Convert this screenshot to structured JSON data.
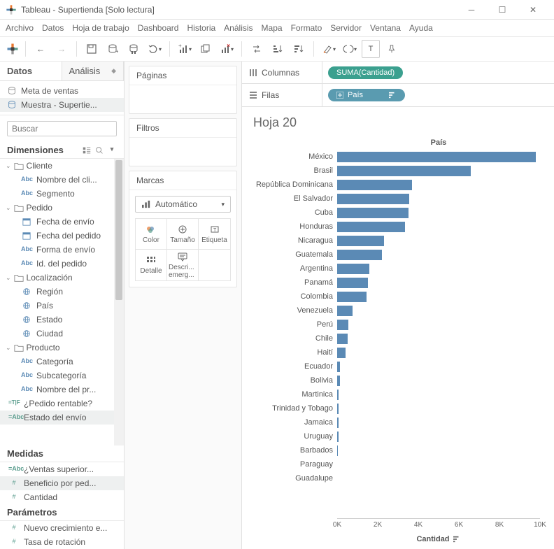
{
  "app_title": "Tableau - Supertienda [Solo lectura]",
  "menu": [
    "Archivo",
    "Datos",
    "Hoja de trabajo",
    "Dashboard",
    "Historia",
    "Análisis",
    "Mapa",
    "Formato",
    "Servidor",
    "Ventana",
    "Ayuda"
  ],
  "datapane": {
    "tab_active": "Datos",
    "tab_inactive": "Análisis",
    "sources": [
      {
        "label": "Meta de ventas",
        "sel": false
      },
      {
        "label": "Muestra - Supertie...",
        "sel": true
      }
    ],
    "search_placeholder": "Buscar",
    "dimensions_label": "Dimensiones",
    "measures_label": "Medidas",
    "parameters_label": "Parámetros",
    "folders": [
      {
        "name": "Cliente",
        "fields": [
          {
            "t": "abc",
            "n": "Nombre del cli..."
          },
          {
            "t": "abc",
            "n": "Segmento"
          }
        ]
      },
      {
        "name": "Pedido",
        "fields": [
          {
            "t": "date",
            "n": "Fecha de envío"
          },
          {
            "t": "date",
            "n": "Fecha del pedido"
          },
          {
            "t": "abc",
            "n": "Forma de envío"
          },
          {
            "t": "abc",
            "n": "Id. del pedido"
          }
        ]
      },
      {
        "name": "Localización",
        "fields": [
          {
            "t": "geo",
            "n": "Región"
          },
          {
            "t": "geo",
            "n": "País"
          },
          {
            "t": "geo",
            "n": "Estado"
          },
          {
            "t": "geo",
            "n": "Ciudad"
          }
        ]
      },
      {
        "name": "Producto",
        "fields": [
          {
            "t": "abc",
            "n": "Categoría"
          },
          {
            "t": "abc",
            "n": "Subcategoría"
          },
          {
            "t": "abc",
            "n": "Nombre del pr..."
          }
        ]
      }
    ],
    "loose_dim": [
      {
        "t": "tf",
        "n": "¿Pedido rentable?"
      },
      {
        "t": "calc",
        "n": "Estado del envío",
        "sel": true
      }
    ],
    "measures": [
      {
        "t": "calc",
        "n": "¿Ventas superior..."
      },
      {
        "t": "num",
        "n": "Beneficio por ped...",
        "sel": true
      },
      {
        "t": "num",
        "n": "Cantidad"
      }
    ],
    "parameters": [
      {
        "t": "num",
        "n": "Nuevo crecimiento e..."
      },
      {
        "t": "num",
        "n": "Tasa de rotación"
      }
    ]
  },
  "cards": {
    "pages": "Páginas",
    "filters": "Filtros",
    "marks": "Marcas",
    "mark_type": "Automático",
    "cells": [
      {
        "l": "Color",
        "i": "color"
      },
      {
        "l": "Tamaño",
        "i": "size"
      },
      {
        "l": "Etiqueta",
        "i": "label"
      },
      {
        "l": "Detalle",
        "i": "detail"
      },
      {
        "l": "Descri... emerg...",
        "i": "tooltip"
      }
    ]
  },
  "shelves": {
    "columns_label": "Columnas",
    "rows_label": "Filas",
    "columns_pill": "SUMA(Cantidad)",
    "rows_pill": "País"
  },
  "viz": {
    "title": "Hoja 20",
    "field_header": "País",
    "axis_label": "Cantidad",
    "bar_color": "#5b8ab5",
    "max": 10000,
    "ticks": [
      "0K",
      "2K",
      "4K",
      "6K",
      "8K",
      "10K"
    ],
    "data": [
      {
        "c": "México",
        "v": 9800
      },
      {
        "c": "Brasil",
        "v": 6600
      },
      {
        "c": "República Dominicana",
        "v": 3700
      },
      {
        "c": "El Salvador",
        "v": 3550
      },
      {
        "c": "Cuba",
        "v": 3500
      },
      {
        "c": "Honduras",
        "v": 3350
      },
      {
        "c": "Nicaragua",
        "v": 2300
      },
      {
        "c": "Guatemala",
        "v": 2200
      },
      {
        "c": "Argentina",
        "v": 1600
      },
      {
        "c": "Panamá",
        "v": 1500
      },
      {
        "c": "Colombia",
        "v": 1450
      },
      {
        "c": "Venezuela",
        "v": 750
      },
      {
        "c": "Perú",
        "v": 550
      },
      {
        "c": "Chile",
        "v": 500
      },
      {
        "c": "Haití",
        "v": 400
      },
      {
        "c": "Ecuador",
        "v": 150
      },
      {
        "c": "Bolivia",
        "v": 130
      },
      {
        "c": "Martinica",
        "v": 80
      },
      {
        "c": "Trinidad y Tobago",
        "v": 70
      },
      {
        "c": "Jamaica",
        "v": 60
      },
      {
        "c": "Uruguay",
        "v": 55
      },
      {
        "c": "Barbados",
        "v": 45
      },
      {
        "c": "Paraguay",
        "v": 0
      },
      {
        "c": "Guadalupe",
        "v": 0
      }
    ]
  }
}
